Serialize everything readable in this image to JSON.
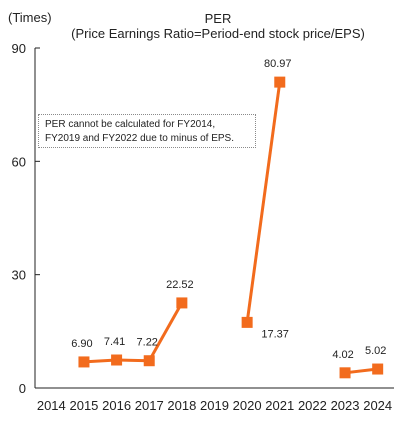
{
  "chart_data": {
    "type": "line",
    "title": "PER",
    "subtitle": "(Price Earnings Ratio=Period-end stock price/EPS)",
    "ylabel": "(Times)",
    "xlabel": "",
    "ylim": [
      0,
      90
    ],
    "yticks": [
      0,
      30,
      60,
      90
    ],
    "categories": [
      "2014",
      "2015",
      "2016",
      "2017",
      "2018",
      "2019",
      "2020",
      "2021",
      "2022",
      "2023",
      "2024"
    ],
    "series": [
      {
        "values": [
          null,
          6.9,
          7.41,
          7.22,
          22.52,
          null,
          17.37,
          80.97,
          null,
          4.02,
          5.02
        ],
        "labels": [
          "",
          "6.90",
          "7.41",
          "7.22",
          "22.52",
          "",
          "17.37",
          "80.97",
          "",
          "4.02",
          "5.02"
        ],
        "color": "#f26b1d"
      }
    ],
    "grid": false,
    "legend": "none"
  },
  "note": {
    "line1": "PER cannot be calculated for FY2014,",
    "line2": "FY2019 and FY2022 due to minus of EPS."
  }
}
